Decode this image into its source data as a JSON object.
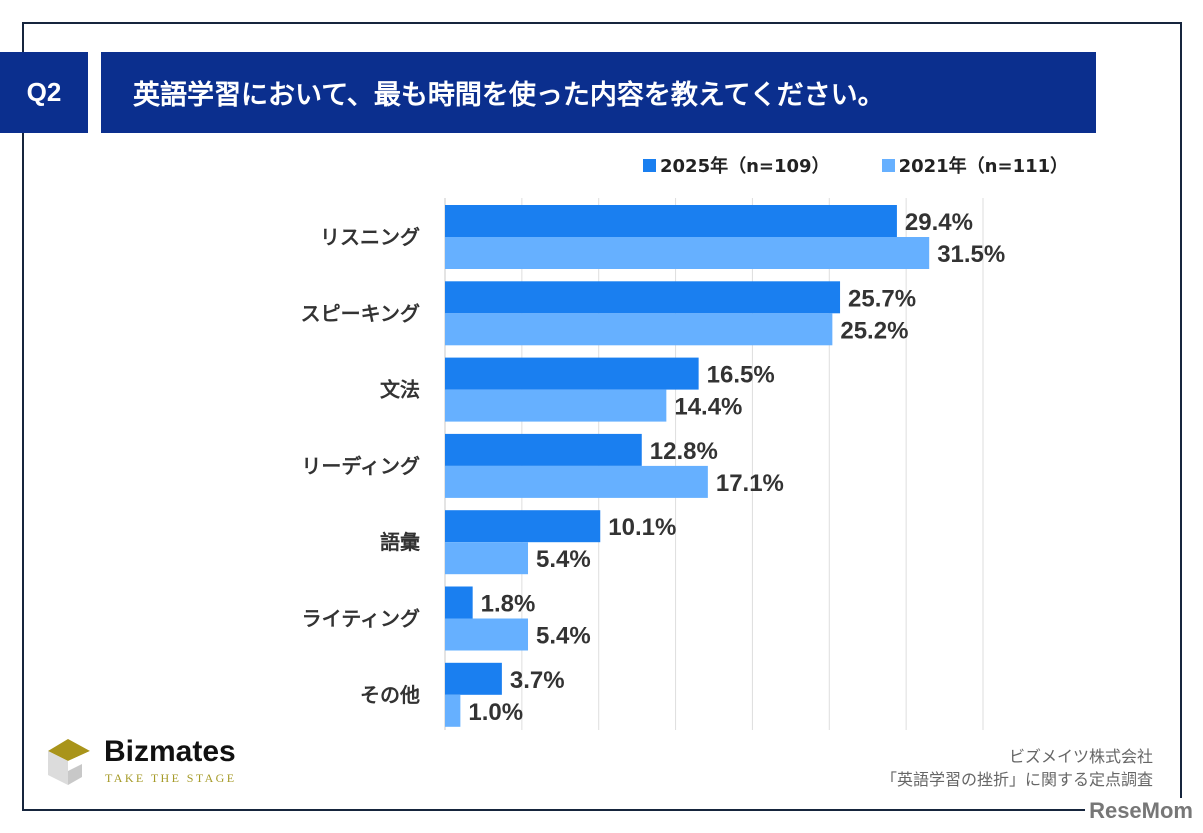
{
  "header": {
    "question_no": "Q2",
    "title": "英語学習において、最も時間を使った内容を教えてください。",
    "color": "#0b2f8e"
  },
  "chart_data": {
    "type": "bar",
    "orientation": "horizontal",
    "categories": [
      "リスニング",
      "スピーキング",
      "文法",
      "リーディング",
      "語彙",
      "ライティング",
      "その他"
    ],
    "series": [
      {
        "name": "2025年（n=109）",
        "color": "#1a7ff0",
        "values": [
          29.4,
          25.7,
          16.5,
          12.8,
          10.1,
          1.8,
          3.7
        ],
        "labels": [
          "29.4%",
          "25.7%",
          "16.5%",
          "12.8%",
          "10.1%",
          "1.8%",
          "3.7%"
        ]
      },
      {
        "name": "2021年（n=111）",
        "color": "#66b0ff",
        "values": [
          31.5,
          25.2,
          14.4,
          17.1,
          5.4,
          5.4,
          1.0
        ],
        "labels": [
          "31.5%",
          "25.2%",
          "14.4%",
          "17.1%",
          "5.4%",
          "5.4%",
          "1.0%"
        ]
      }
    ],
    "xlim": [
      0,
      35
    ],
    "grid": true,
    "legend": "top-right",
    "unit": "%"
  },
  "logo": {
    "name": "Bizmates",
    "tagline": "TAKE THE STAGE"
  },
  "source": {
    "line1": "ビズメイツ株式会社",
    "line2": "「英語学習の挫折」に関する定点調査"
  },
  "watermark": "ReseMom"
}
